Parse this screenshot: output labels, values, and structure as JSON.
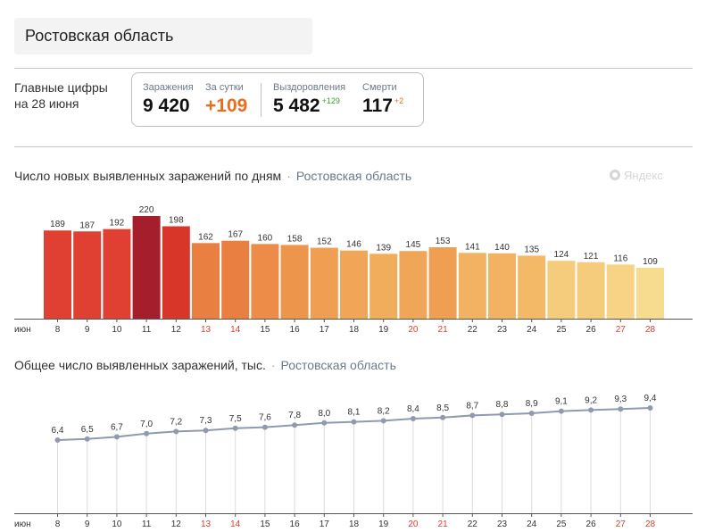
{
  "region": {
    "name": "Ростовская область"
  },
  "main_figures": {
    "label_line1": "Главные цифры",
    "label_line2": "на 28 июня",
    "infections_label": "Заражения",
    "infections_value": "9 420",
    "per_day_label": "За сутки",
    "per_day_value": "+109",
    "recovered_label": "Выздоровления",
    "recovered_value": "5 482",
    "recovered_delta": "+129",
    "deaths_label": "Смерти",
    "deaths_value": "117",
    "deaths_delta": "+2"
  },
  "watermark": "Яндекс",
  "colors": {
    "weekend_tick": "#e53a2a",
    "weekday_tick": "#333333",
    "line": "#8f9ab0",
    "dot": "#8f9ab0"
  },
  "chart_data": [
    {
      "type": "bar",
      "title": "Число новых выявленных заражений по дням",
      "region": "Ростовская область",
      "month_label": "июн",
      "categories": [
        "8",
        "9",
        "10",
        "11",
        "12",
        "13",
        "14",
        "15",
        "16",
        "17",
        "18",
        "19",
        "20",
        "21",
        "22",
        "23",
        "24",
        "25",
        "26",
        "27",
        "28"
      ],
      "values": [
        189,
        187,
        192,
        220,
        198,
        162,
        167,
        160,
        158,
        152,
        146,
        139,
        145,
        153,
        141,
        140,
        135,
        124,
        121,
        116,
        109
      ],
      "weekend_categories": [
        "13",
        "14",
        "20",
        "21",
        "27",
        "28"
      ],
      "colors": [
        "#df4031",
        "#df4031",
        "#df4031",
        "#a51e2b",
        "#d83629",
        "#ea7f42",
        "#ea7f42",
        "#ed8b48",
        "#ee954c",
        "#ef9e52",
        "#f0a656",
        "#f1ad5a",
        "#f0a656",
        "#ef9e52",
        "#f2b261",
        "#f2b261",
        "#f3b966",
        "#f5cc7b",
        "#f5cc7b",
        "#f6d385",
        "#f7dc90"
      ],
      "ylim": [
        0,
        240
      ],
      "grid": false
    },
    {
      "type": "line",
      "title": "Общее число выявленных заражений, тыс.",
      "region": "Ростовская область",
      "month_label": "июн",
      "categories": [
        "8",
        "9",
        "10",
        "11",
        "12",
        "13",
        "14",
        "15",
        "16",
        "17",
        "18",
        "19",
        "20",
        "21",
        "22",
        "23",
        "24",
        "25",
        "26",
        "27",
        "28"
      ],
      "values": [
        6.4,
        6.5,
        6.7,
        7.0,
        7.2,
        7.3,
        7.5,
        7.6,
        7.8,
        8.0,
        8.1,
        8.2,
        8.4,
        8.5,
        8.7,
        8.8,
        8.9,
        9.1,
        9.2,
        9.3,
        9.4
      ],
      "value_labels": [
        "6,4",
        "6,5",
        "6,7",
        "7,0",
        "7,2",
        "7,3",
        "7,5",
        "7,6",
        "7,8",
        "8,0",
        "8,1",
        "8,2",
        "8,4",
        "8,5",
        "8,7",
        "8,8",
        "8,9",
        "9,1",
        "9,2",
        "9,3",
        "9,4"
      ],
      "weekend_categories": [
        "13",
        "14",
        "20",
        "21",
        "27",
        "28"
      ],
      "ylim": [
        0,
        10
      ],
      "grid": "vertical"
    }
  ]
}
